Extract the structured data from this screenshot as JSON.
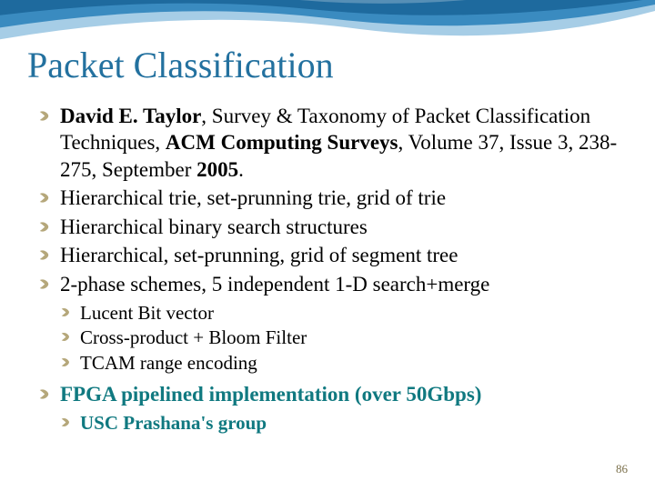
{
  "slide": {
    "title": "Packet Classification",
    "page_number": "86",
    "colors": {
      "title": "#23719f",
      "accent": "#107980",
      "bullet_glyph": "#b5a77a",
      "curve_dark": "#1e6a9e",
      "curve_mid": "#3a8bc0",
      "curve_light": "#a6cde6",
      "text": "#000000",
      "background": "#ffffff"
    },
    "bullets": [
      {
        "segments": [
          {
            "text": "David E. Taylor",
            "bold": true
          },
          {
            "text": ", Survey & Taxonomy of Packet Classification Techniques, "
          },
          {
            "text": "ACM Computing Surveys",
            "bold": true
          },
          {
            "text": ", Volume 37, Issue 3, 238-275, September "
          },
          {
            "text": "2005",
            "bold": true
          },
          {
            "text": "."
          }
        ]
      },
      {
        "text": "Hierarchical trie, set-prunning trie, grid of trie"
      },
      {
        "text": "Hierarchical binary search structures"
      },
      {
        "text": "Hierarchical, set-prunning, grid of segment tree"
      },
      {
        "text": "2-phase schemes, 5 independent 1-D search+merge",
        "sub": [
          {
            "text": "Lucent Bit vector"
          },
          {
            "text": "Cross-product + Bloom Filter"
          },
          {
            "text": "TCAM range encoding"
          }
        ]
      },
      {
        "text": "FPGA pipelined implementation (over 50Gbps)",
        "teal": true,
        "bold": true,
        "sub": [
          {
            "text": "USC Prashana's group",
            "teal": true,
            "bold": true
          }
        ]
      }
    ]
  }
}
